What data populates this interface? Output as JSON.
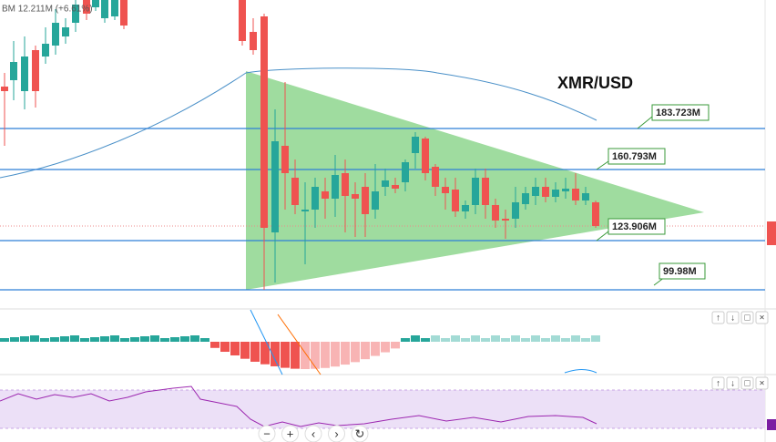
{
  "header": {
    "ticker": "BM 12.211M (+6.61%)"
  },
  "annotations": {
    "title": "XMR/USD",
    "levels": [
      "183.723M",
      "160.793M",
      "123.906M",
      "99.98M"
    ]
  },
  "pane_buttons": [
    "↑",
    "↓",
    "□",
    "×"
  ],
  "toolbar": [
    "−",
    "+",
    "‹",
    "›",
    "↻"
  ]
}
